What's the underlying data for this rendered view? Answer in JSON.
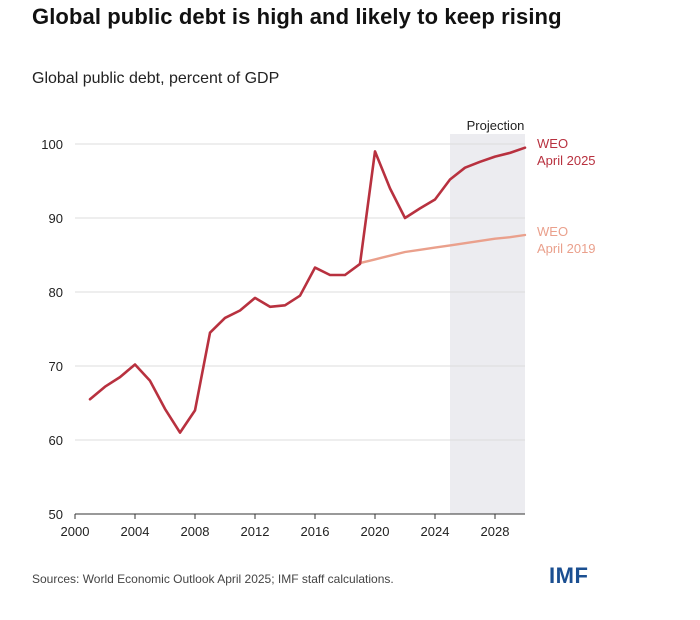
{
  "header": {
    "title": "Global public debt is high and likely to keep rising",
    "subtitle": "Global public debt, percent of GDP"
  },
  "footer": {
    "source": "Sources: World Economic Outlook April 2025; IMF staff calculations.",
    "logo_text": "IMF"
  },
  "colors": {
    "weo2025": "#b8313f",
    "weo2019": "#eaa08c",
    "projection_band": "#ececf0",
    "grid": "#dddddd",
    "logo": "#1b4f91"
  },
  "chart_data": {
    "type": "line",
    "title": "Global public debt is high and likely to keep rising",
    "subtitle": "Global public debt, percent of GDP",
    "xlim": [
      2000,
      2030
    ],
    "ylim": [
      50,
      100
    ],
    "x_ticks": [
      2000,
      2004,
      2008,
      2012,
      2016,
      2020,
      2024,
      2028
    ],
    "y_ticks": [
      50,
      60,
      70,
      80,
      90,
      100
    ],
    "grid": "horizontal",
    "projection": {
      "label": "Projection",
      "from": 2025,
      "to": 2030
    },
    "series": [
      {
        "name": "WEO April 2025",
        "label_lines": [
          "WEO",
          "April 2025"
        ],
        "x": [
          2001,
          2002,
          2003,
          2004,
          2005,
          2006,
          2007,
          2008,
          2009,
          2010,
          2011,
          2012,
          2013,
          2014,
          2015,
          2016,
          2017,
          2018,
          2019,
          2020,
          2021,
          2022,
          2023,
          2024,
          2025,
          2026,
          2027,
          2028,
          2029,
          2030
        ],
        "y": [
          65.5,
          67.2,
          68.5,
          70.2,
          68.0,
          64.2,
          61.0,
          64.0,
          74.5,
          76.5,
          77.5,
          79.2,
          78.0,
          78.2,
          79.5,
          83.3,
          82.3,
          82.3,
          83.8,
          99.0,
          94.0,
          90.0,
          91.3,
          92.5,
          95.2,
          96.8,
          97.6,
          98.3,
          98.8,
          99.5
        ]
      },
      {
        "name": "WEO April 2019",
        "label_lines": [
          "WEO",
          "April 2019"
        ],
        "x": [
          2019,
          2020,
          2021,
          2022,
          2023,
          2024,
          2025,
          2026,
          2027,
          2028,
          2029,
          2030
        ],
        "y": [
          83.9,
          84.4,
          84.9,
          85.4,
          85.7,
          86.0,
          86.3,
          86.6,
          86.9,
          87.2,
          87.4,
          87.7
        ]
      }
    ]
  }
}
